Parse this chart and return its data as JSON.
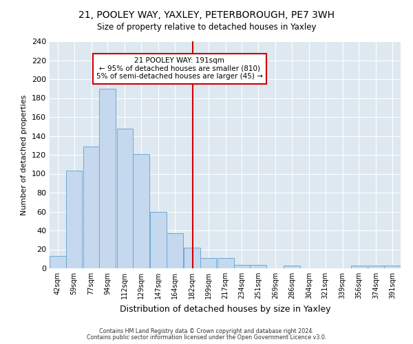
{
  "title": "21, POOLEY WAY, YAXLEY, PETERBOROUGH, PE7 3WH",
  "subtitle": "Size of property relative to detached houses in Yaxley",
  "xlabel": "Distribution of detached houses by size in Yaxley",
  "ylabel": "Number of detached properties",
  "bin_labels": [
    "42sqm",
    "59sqm",
    "77sqm",
    "94sqm",
    "112sqm",
    "129sqm",
    "147sqm",
    "164sqm",
    "182sqm",
    "199sqm",
    "217sqm",
    "234sqm",
    "251sqm",
    "269sqm",
    "286sqm",
    "304sqm",
    "321sqm",
    "339sqm",
    "356sqm",
    "374sqm",
    "391sqm"
  ],
  "bin_edges": [
    42,
    59,
    77,
    94,
    112,
    129,
    147,
    164,
    182,
    199,
    217,
    234,
    251,
    269,
    286,
    304,
    321,
    339,
    356,
    374,
    391
  ],
  "bin_width": 17,
  "counts": [
    13,
    103,
    129,
    190,
    148,
    121,
    60,
    37,
    22,
    11,
    11,
    4,
    4,
    0,
    3,
    0,
    0,
    0,
    3,
    3,
    3
  ],
  "bar_color": "#c5d8ee",
  "bar_edge_color": "#6aaad4",
  "vline_x": 191,
  "vline_color": "#cc0000",
  "annotation_title": "21 POOLEY WAY: 191sqm",
  "annotation_line1": "← 95% of detached houses are smaller (810)",
  "annotation_line2": "5% of semi-detached houses are larger (45) →",
  "annotation_box_facecolor": "#ffffff",
  "annotation_box_edgecolor": "#cc0000",
  "ylim": [
    0,
    240
  ],
  "yticks": [
    0,
    20,
    40,
    60,
    80,
    100,
    120,
    140,
    160,
    180,
    200,
    220,
    240
  ],
  "fig_facecolor": "#ffffff",
  "ax_facecolor": "#dde8f0",
  "grid_color": "#ffffff",
  "footer1": "Contains HM Land Registry data © Crown copyright and database right 2024.",
  "footer2": "Contains public sector information licensed under the Open Government Licence v3.0."
}
